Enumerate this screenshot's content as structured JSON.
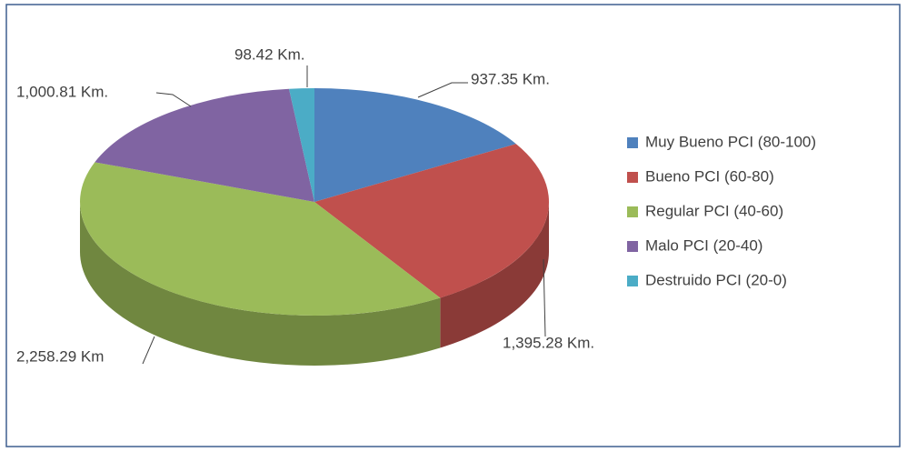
{
  "chart_data": {
    "type": "pie",
    "categories": [
      "Muy Bueno PCI (80-100)",
      "Bueno PCI (60-80)",
      "Regular PCI (40-60)",
      "Malo PCI (20-40)",
      "Destruido PCI (20-0)"
    ],
    "values": [
      937.35,
      1395.28,
      2258.29,
      1000.81,
      98.42
    ],
    "value_labels": [
      "937.35 Km.",
      "1,395.28 Km.",
      "2,258.29 Km",
      "1,000.81 Km.",
      "98.42 Km."
    ],
    "colors": [
      "#4f81bd",
      "#c0504d",
      "#9bbb59",
      "#8064a2",
      "#4bacc6"
    ],
    "legend": "right"
  }
}
